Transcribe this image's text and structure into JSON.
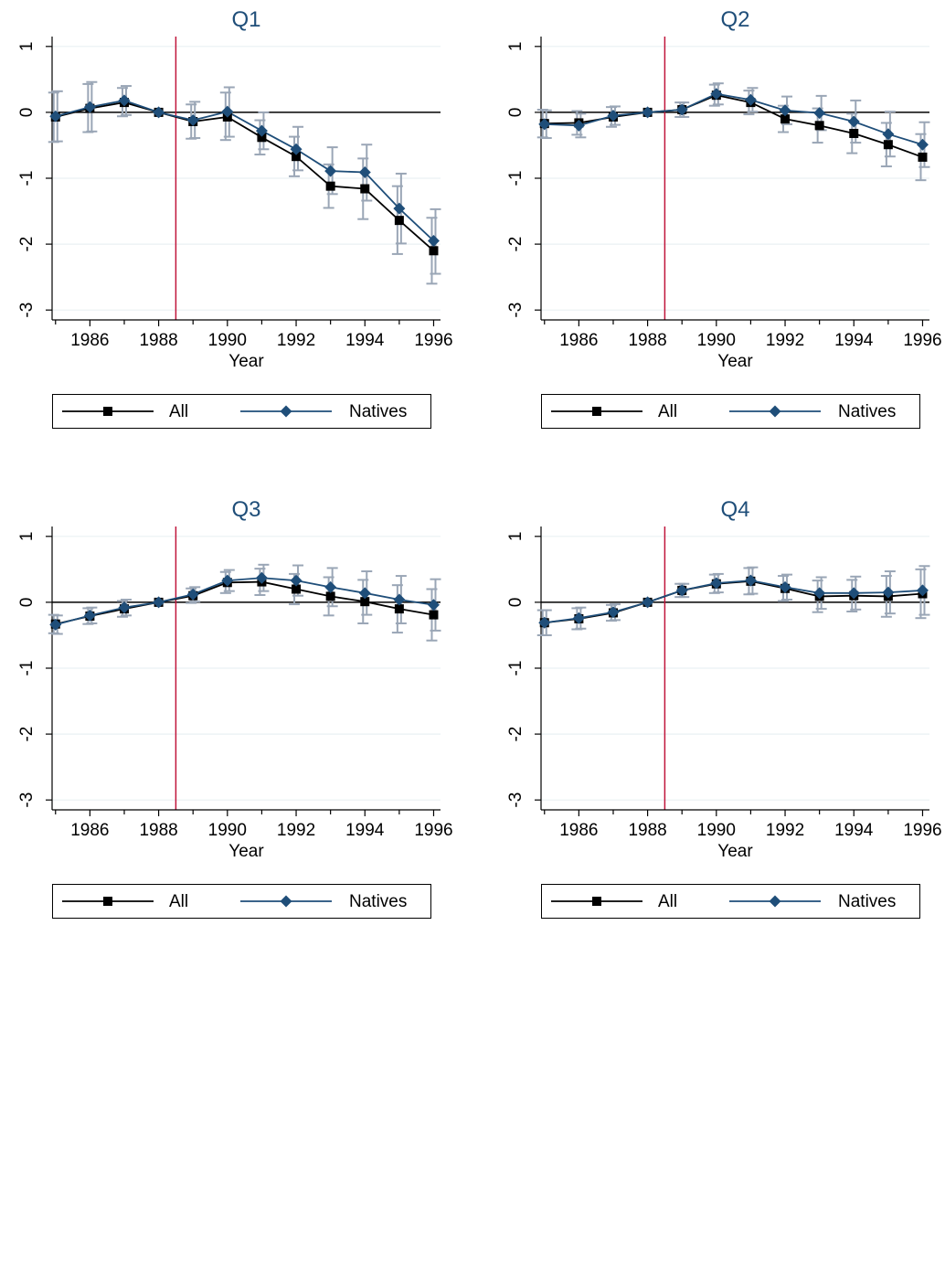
{
  "chart_data": [
    {
      "type": "line",
      "title": "Q1",
      "xlabel": "Year",
      "ylabel": "",
      "x": [
        1985,
        1986,
        1987,
        1988,
        1989,
        1990,
        1991,
        1992,
        1993,
        1994,
        1995,
        1996
      ],
      "xticks": [
        1986,
        1988,
        1990,
        1992,
        1994,
        1996
      ],
      "yticks": [
        1,
        0,
        -1,
        -2,
        -3
      ],
      "ylim": [
        -3.15,
        1.15
      ],
      "xlim": [
        1984.9,
        1996.2
      ],
      "vline_x": 1988.5,
      "series": [
        {
          "name": "All",
          "color": "#000000",
          "marker": "square",
          "values": [
            -0.07,
            0.06,
            0.15,
            0.0,
            -0.14,
            -0.07,
            -0.38,
            -0.67,
            -1.12,
            -1.16,
            -1.64,
            -2.1
          ],
          "ci_low": [
            -0.45,
            -0.3,
            -0.06,
            0.0,
            -0.4,
            -0.42,
            -0.64,
            -0.97,
            -1.45,
            -1.62,
            -2.15,
            -2.6
          ],
          "ci_high": [
            0.3,
            0.43,
            0.37,
            0.0,
            0.12,
            0.3,
            -0.12,
            -0.37,
            -0.79,
            -0.7,
            -1.12,
            -1.6
          ]
        },
        {
          "name": "Natives",
          "color": "#1f4e79",
          "marker": "diamond",
          "values": [
            -0.06,
            0.08,
            0.18,
            0.0,
            -0.12,
            0.01,
            -0.28,
            -0.56,
            -0.89,
            -0.91,
            -1.46,
            -1.95
          ],
          "ci_low": [
            -0.44,
            -0.29,
            -0.04,
            0.0,
            -0.39,
            -0.37,
            -0.56,
            -0.88,
            -1.24,
            -1.34,
            -1.99,
            -2.45
          ],
          "ci_high": [
            0.32,
            0.46,
            0.4,
            0.0,
            0.16,
            0.38,
            0.0,
            -0.22,
            -0.53,
            -0.49,
            -0.93,
            -1.47
          ]
        }
      ],
      "legend": {
        "position": "bottom",
        "entries": [
          "All",
          "Natives"
        ]
      }
    },
    {
      "type": "line",
      "title": "Q2",
      "xlabel": "Year",
      "ylabel": "",
      "x": [
        1985,
        1986,
        1987,
        1988,
        1989,
        1990,
        1991,
        1992,
        1993,
        1994,
        1995,
        1996
      ],
      "xticks": [
        1986,
        1988,
        1990,
        1992,
        1994,
        1996
      ],
      "yticks": [
        1,
        0,
        -1,
        -2,
        -3
      ],
      "ylim": [
        -3.15,
        1.15
      ],
      "xlim": [
        1984.9,
        1996.2
      ],
      "vline_x": 1988.5,
      "series": [
        {
          "name": "All",
          "color": "#000000",
          "marker": "square",
          "values": [
            -0.17,
            -0.16,
            -0.07,
            0.0,
            0.04,
            0.26,
            0.15,
            -0.1,
            -0.2,
            -0.32,
            -0.49,
            -0.68
          ],
          "ci_low": [
            -0.38,
            -0.34,
            -0.22,
            0.0,
            -0.07,
            0.1,
            -0.03,
            -0.3,
            -0.46,
            -0.62,
            -0.82,
            -1.03
          ],
          "ci_high": [
            0.04,
            0.02,
            0.08,
            0.0,
            0.15,
            0.42,
            0.33,
            0.1,
            0.06,
            -0.02,
            -0.16,
            -0.33
          ]
        },
        {
          "name": "Natives",
          "color": "#1f4e79",
          "marker": "diamond",
          "values": [
            -0.18,
            -0.2,
            -0.05,
            0.0,
            0.04,
            0.28,
            0.19,
            0.03,
            -0.01,
            -0.14,
            -0.33,
            -0.49
          ],
          "ci_low": [
            -0.39,
            -0.38,
            -0.19,
            0.0,
            -0.07,
            0.12,
            0.01,
            -0.18,
            -0.27,
            -0.46,
            -0.67,
            -0.83
          ],
          "ci_high": [
            0.03,
            -0.02,
            0.09,
            0.0,
            0.15,
            0.44,
            0.37,
            0.24,
            0.25,
            0.18,
            0.01,
            -0.15
          ]
        }
      ],
      "legend": {
        "position": "bottom",
        "entries": [
          "All",
          "Natives"
        ]
      }
    },
    {
      "type": "line",
      "title": "Q3",
      "xlabel": "Year",
      "ylabel": "",
      "x": [
        1985,
        1986,
        1987,
        1988,
        1989,
        1990,
        1991,
        1992,
        1993,
        1994,
        1995,
        1996
      ],
      "xticks": [
        1986,
        1988,
        1990,
        1992,
        1994,
        1996
      ],
      "yticks": [
        1,
        0,
        -1,
        -2,
        -3
      ],
      "ylim": [
        -3.15,
        1.15
      ],
      "xlim": [
        1984.9,
        1996.2
      ],
      "vline_x": 1988.5,
      "series": [
        {
          "name": "All",
          "color": "#000000",
          "marker": "square",
          "values": [
            -0.33,
            -0.21,
            -0.1,
            0.0,
            0.1,
            0.3,
            0.31,
            0.2,
            0.09,
            0.01,
            -0.1,
            -0.19
          ],
          "ci_low": [
            -0.47,
            -0.33,
            -0.22,
            0.0,
            -0.01,
            0.14,
            0.11,
            -0.03,
            -0.2,
            -0.32,
            -0.46,
            -0.58
          ],
          "ci_high": [
            -0.19,
            -0.09,
            0.02,
            0.0,
            0.21,
            0.46,
            0.51,
            0.43,
            0.38,
            0.34,
            0.26,
            0.2
          ]
        },
        {
          "name": "Natives",
          "color": "#1f4e79",
          "marker": "diamond",
          "values": [
            -0.34,
            -0.2,
            -0.08,
            0.0,
            0.12,
            0.33,
            0.37,
            0.33,
            0.23,
            0.14,
            0.04,
            -0.04
          ],
          "ci_low": [
            -0.48,
            -0.32,
            -0.2,
            0.0,
            0.01,
            0.17,
            0.17,
            0.1,
            -0.06,
            -0.19,
            -0.32,
            -0.43
          ],
          "ci_high": [
            -0.2,
            -0.08,
            0.04,
            0.0,
            0.23,
            0.49,
            0.57,
            0.56,
            0.52,
            0.47,
            0.4,
            0.35
          ]
        }
      ],
      "legend": {
        "position": "bottom",
        "entries": [
          "All",
          "Natives"
        ]
      }
    },
    {
      "type": "line",
      "title": "Q4",
      "xlabel": "Year",
      "ylabel": "",
      "x": [
        1985,
        1986,
        1987,
        1988,
        1989,
        1990,
        1991,
        1992,
        1993,
        1994,
        1995,
        1996
      ],
      "xticks": [
        1986,
        1988,
        1990,
        1992,
        1994,
        1996
      ],
      "yticks": [
        1,
        0,
        -1,
        -2,
        -3
      ],
      "ylim": [
        -3.15,
        1.15
      ],
      "xlim": [
        1984.9,
        1996.2
      ],
      "vline_x": 1988.5,
      "series": [
        {
          "name": "All",
          "color": "#000000",
          "marker": "square",
          "values": [
            -0.31,
            -0.25,
            -0.16,
            0.0,
            0.18,
            0.28,
            0.32,
            0.21,
            0.09,
            0.1,
            0.09,
            0.13
          ],
          "ci_low": [
            -0.5,
            -0.41,
            -0.28,
            0.0,
            0.08,
            0.14,
            0.12,
            0.02,
            -0.15,
            -0.14,
            -0.22,
            -0.24
          ],
          "ci_high": [
            -0.12,
            -0.09,
            -0.04,
            0.0,
            0.28,
            0.42,
            0.52,
            0.4,
            0.33,
            0.34,
            0.4,
            0.5
          ]
        },
        {
          "name": "Natives",
          "color": "#1f4e79",
          "marker": "diamond",
          "values": [
            -0.31,
            -0.24,
            -0.15,
            0.0,
            0.18,
            0.29,
            0.33,
            0.23,
            0.14,
            0.14,
            0.15,
            0.18
          ],
          "ci_low": [
            -0.5,
            -0.4,
            -0.27,
            0.0,
            0.08,
            0.15,
            0.13,
            0.04,
            -0.1,
            -0.11,
            -0.17,
            -0.19
          ],
          "ci_high": [
            -0.12,
            -0.08,
            -0.03,
            0.0,
            0.28,
            0.43,
            0.53,
            0.42,
            0.38,
            0.39,
            0.47,
            0.55
          ]
        }
      ],
      "legend": {
        "position": "bottom",
        "entries": [
          "All",
          "Natives"
        ]
      }
    }
  ],
  "colors": {
    "all": "#000000",
    "natives": "#1f4e79",
    "ci": "#9aa6b6",
    "vline": "#c0153a",
    "grid": "#eaf0f3"
  }
}
